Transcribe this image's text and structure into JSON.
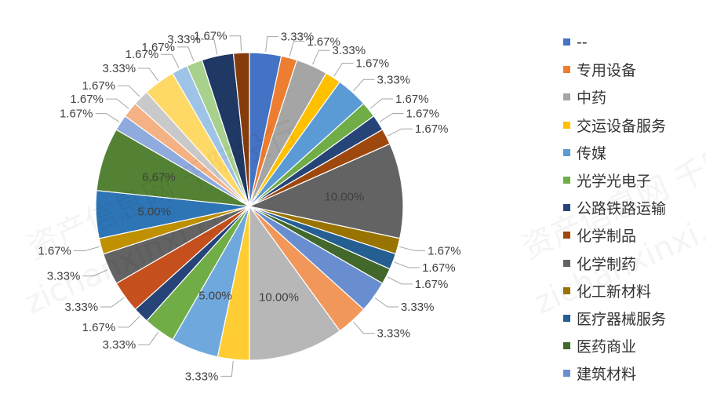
{
  "chart_data": {
    "type": "pie",
    "title": "",
    "legend_position": "right",
    "slices": [
      {
        "name": "--",
        "value": 3.33,
        "label": "3.33%",
        "color": "#4472C4"
      },
      {
        "name": "专用设备",
        "value": 1.67,
        "label": "1.67%",
        "color": "#ED7D31"
      },
      {
        "name": "中药",
        "value": 3.33,
        "label": "3.33%",
        "color": "#A5A5A5"
      },
      {
        "name": "交运设备服务",
        "value": 1.67,
        "label": "1.67%",
        "color": "#FFC000"
      },
      {
        "name": "传媒",
        "value": 3.33,
        "label": "3.33%",
        "color": "#5B9BD5"
      },
      {
        "name": "光学光电子",
        "value": 1.67,
        "label": "1.67%",
        "color": "#70AD47"
      },
      {
        "name": "公路铁路运输",
        "value": 1.67,
        "label": "1.67%",
        "color": "#264478"
      },
      {
        "name": "化学制品",
        "value": 1.67,
        "label": "1.67%",
        "color": "#9E480E"
      },
      {
        "name": "化学制药",
        "value": 10.0,
        "label": "10.00%",
        "color": "#636363"
      },
      {
        "name": "化工新材料",
        "value": 1.67,
        "label": "1.67%",
        "color": "#997300"
      },
      {
        "name": "医疗器械服务",
        "value": 1.67,
        "label": "1.67%",
        "color": "#255E91"
      },
      {
        "name": "医药商业",
        "value": 1.67,
        "label": "1.67%",
        "color": "#43682B"
      },
      {
        "name": "建筑材料",
        "value": 3.33,
        "label": "3.33%",
        "color": "#698ED0"
      },
      {
        "name": "",
        "value": 3.33,
        "label": "3.33%",
        "color": "#F1975A"
      },
      {
        "name": "",
        "value": 10.0,
        "label": "10.00%",
        "color": "#B7B7B7"
      },
      {
        "name": "",
        "value": 3.33,
        "label": "3.33%",
        "color": "#FFCD33"
      },
      {
        "name": "",
        "value": 5.0,
        "label": "5.00%",
        "color": "#6FA8DC"
      },
      {
        "name": "",
        "value": 3.33,
        "label": "3.33%",
        "color": "#70AD47"
      },
      {
        "name": "",
        "value": 1.67,
        "label": "1.67%",
        "color": "#264478"
      },
      {
        "name": "",
        "value": 3.33,
        "label": "3.33%",
        "color": "#C5501E"
      },
      {
        "name": "",
        "value": 3.33,
        "label": "3.33%",
        "color": "#636363"
      },
      {
        "name": "",
        "value": 1.67,
        "label": "1.67%",
        "color": "#BF9000"
      },
      {
        "name": "",
        "value": 5.0,
        "label": "5.00%",
        "color": "#2E75B6"
      },
      {
        "name": "",
        "value": 6.67,
        "label": "6.67%",
        "color": "#548235"
      },
      {
        "name": "",
        "value": 1.67,
        "label": "1.67%",
        "color": "#8FAADC"
      },
      {
        "name": "",
        "value": 1.67,
        "label": "1.67%",
        "color": "#F4B183"
      },
      {
        "name": "",
        "value": 1.67,
        "label": "1.67%",
        "color": "#C9C9C9"
      },
      {
        "name": "",
        "value": 3.33,
        "label": "3.33%",
        "color": "#FFD966"
      },
      {
        "name": "",
        "value": 1.67,
        "label": "1.67%",
        "color": "#9DC3E6"
      },
      {
        "name": "",
        "value": 1.67,
        "label": "1.67%",
        "color": "#A9D18E"
      },
      {
        "name": "",
        "value": 3.33,
        "label": "3.33%",
        "color": "#1F3864"
      },
      {
        "name": "",
        "value": 1.67,
        "label": "1.67%",
        "color": "#843C0C"
      }
    ],
    "legend": [
      {
        "label": "--",
        "color": "#4472C4"
      },
      {
        "label": "专用设备",
        "color": "#ED7D31"
      },
      {
        "label": "中药",
        "color": "#A5A5A5"
      },
      {
        "label": "交运设备服务",
        "color": "#FFC000"
      },
      {
        "label": "传媒",
        "color": "#5B9BD5"
      },
      {
        "label": "光学光电子",
        "color": "#70AD47"
      },
      {
        "label": "公路铁路运输",
        "color": "#264478"
      },
      {
        "label": "化学制品",
        "color": "#9E480E"
      },
      {
        "label": "化学制药",
        "color": "#636363"
      },
      {
        "label": "化工新材料",
        "color": "#997300"
      },
      {
        "label": "医疗器械服务",
        "color": "#255E91"
      },
      {
        "label": "医药商业",
        "color": "#43682B"
      },
      {
        "label": "建筑材料",
        "color": "#698ED0"
      }
    ]
  },
  "watermark": {
    "text_cn": "资产信息网 千际投行",
    "text_en": "zichanxinxi.com"
  }
}
